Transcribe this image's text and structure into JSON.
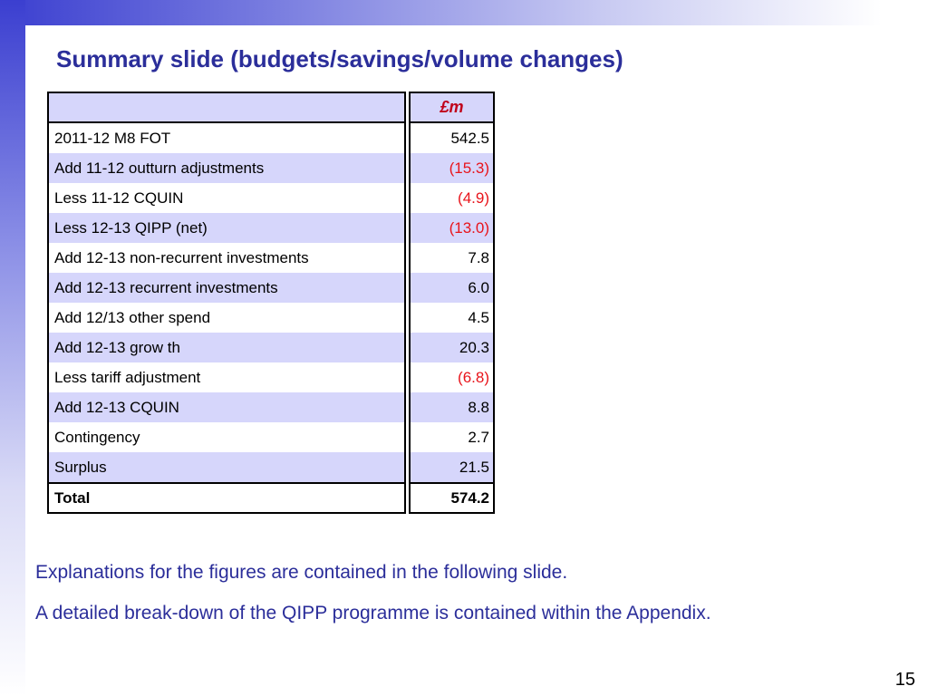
{
  "title": "Summary slide (budgets/savings/volume changes)",
  "table": {
    "currency_header": "£m",
    "rows": [
      {
        "label": "2011-12 M8 FOT",
        "value": "542.5"
      },
      {
        "label": "Add 11-12 outturn adjustments",
        "value": "(15.3)"
      },
      {
        "label": "Less 11-12 CQUIN",
        "value": "(4.9)"
      },
      {
        "label": "Less 12-13 QIPP (net)",
        "value": "(13.0)"
      },
      {
        "label": "Add 12-13 non-recurrent investments",
        "value": "7.8"
      },
      {
        "label": "Add 12-13 recurrent investments",
        "value": "6.0"
      },
      {
        "label": "Add 12/13 other spend",
        "value": "4.5"
      },
      {
        "label": "Add 12-13 grow th",
        "value": "20.3"
      },
      {
        "label": "Less tariff adjustment",
        "value": "(6.8)"
      },
      {
        "label": "Add 12-13 CQUIN",
        "value": "8.8"
      },
      {
        "label": "Contingency",
        "value": "2.7"
      },
      {
        "label": "Surplus",
        "value": "21.5"
      }
    ],
    "total": {
      "label": "Total",
      "value": "574.2"
    },
    "negative_color": "#e8141b",
    "shade_color": "#d6d6fb"
  },
  "notes": [
    "Explanations for the figures are contained in the following slide.",
    "A detailed break-down of the QIPP programme is contained within the Appendix."
  ],
  "page_number": "15"
}
